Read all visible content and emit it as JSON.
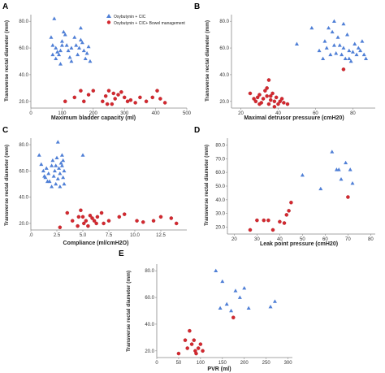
{
  "legend": {
    "items": [
      {
        "label": "Oxybutynin + CIC",
        "color": "#4f7fd6",
        "marker": "triangle"
      },
      {
        "label": "Oxybutynin + CIC+ Bowel management",
        "color": "#d4282f",
        "marker": "circle"
      }
    ]
  },
  "chart_data": [
    {
      "panel": "A",
      "type": "scatter",
      "xlabel": "Maximum bladder capacity (ml)",
      "ylabel": "Transverse rectal diameter (mm)",
      "xlim": [
        0,
        500
      ],
      "ylim": [
        15,
        85
      ],
      "xticks": [
        "0",
        "100",
        "200",
        "300",
        "400",
        "500"
      ],
      "yticks": [
        "20.0",
        "40.0",
        "60.0",
        "80.0"
      ],
      "series": [
        {
          "name": "Oxybutynin + CIC",
          "points": [
            [
              75,
              82
            ],
            [
              65,
              68
            ],
            [
              70,
              62
            ],
            [
              80,
              60
            ],
            [
              85,
              57
            ],
            [
              90,
              55
            ],
            [
              95,
              58
            ],
            [
              100,
              65
            ],
            [
              110,
              70
            ],
            [
              115,
              62
            ],
            [
              120,
              58
            ],
            [
              125,
              53
            ],
            [
              130,
              50
            ],
            [
              140,
              68
            ],
            [
              145,
              62
            ],
            [
              150,
              55
            ],
            [
              155,
              60
            ],
            [
              160,
              75
            ],
            [
              165,
              64
            ],
            [
              170,
              58
            ],
            [
              175,
              52
            ],
            [
              180,
              56
            ],
            [
              185,
              61
            ],
            [
              190,
              50
            ],
            [
              80,
              52
            ],
            [
              95,
              48
            ],
            [
              105,
              72
            ],
            [
              130,
              60
            ],
            [
              70,
              55
            ],
            [
              100,
              62
            ],
            [
              160,
              66
            ]
          ]
        },
        {
          "name": "Oxybutynin + CIC+ Bowel management",
          "points": [
            [
              110,
              20
            ],
            [
              140,
              23
            ],
            [
              160,
              28
            ],
            [
              170,
              20
            ],
            [
              185,
              25
            ],
            [
              200,
              28
            ],
            [
              230,
              20
            ],
            [
              240,
              24
            ],
            [
              250,
              28
            ],
            [
              260,
              18
            ],
            [
              270,
              22
            ],
            [
              280,
              25
            ],
            [
              290,
              27
            ],
            [
              300,
              23
            ],
            [
              310,
              20
            ],
            [
              320,
              21
            ],
            [
              335,
              19
            ],
            [
              350,
              23
            ],
            [
              370,
              20
            ],
            [
              390,
              23
            ],
            [
              405,
              28
            ],
            [
              415,
              22
            ],
            [
              430,
              19
            ],
            [
              245,
              18
            ],
            [
              265,
              26
            ]
          ]
        }
      ]
    },
    {
      "panel": "B",
      "type": "scatter",
      "xlabel": "Maximal detrusor pressuure (cmH20)",
      "ylabel": "Transverse rectal diameter (mm)",
      "xlim": [
        15,
        92
      ],
      "ylim": [
        15,
        85
      ],
      "xticks": [
        "20",
        "40",
        "60",
        "80"
      ],
      "yticks": [
        "20.0",
        "40.0",
        "60.0",
        "80.0"
      ],
      "series": [
        {
          "name": "Oxybutynin + CIC",
          "points": [
            [
              50,
              63
            ],
            [
              58,
              75
            ],
            [
              62,
              58
            ],
            [
              64,
              52
            ],
            [
              65,
              65
            ],
            [
              66,
              60
            ],
            [
              68,
              55
            ],
            [
              69,
              72
            ],
            [
              70,
              80
            ],
            [
              71,
              56
            ],
            [
              72,
              68
            ],
            [
              73,
              62
            ],
            [
              74,
              55
            ],
            [
              75,
              60
            ],
            [
              76,
              52
            ],
            [
              77,
              70
            ],
            [
              78,
              58
            ],
            [
              79,
              50
            ],
            [
              80,
              57
            ],
            [
              81,
              63
            ],
            [
              82,
              55
            ],
            [
              83,
              60
            ],
            [
              84,
              58
            ],
            [
              85,
              65
            ],
            [
              86,
              55
            ],
            [
              87,
              52
            ],
            [
              67,
              75
            ],
            [
              75,
              78
            ],
            [
              70,
              62
            ],
            [
              78,
              52
            ]
          ]
        },
        {
          "name": "Oxybutynin + CIC+ Bowel management",
          "points": [
            [
              25,
              26
            ],
            [
              27,
              22
            ],
            [
              28,
              20
            ],
            [
              29,
              23
            ],
            [
              30,
              25
            ],
            [
              31,
              19
            ],
            [
              32,
              22
            ],
            [
              33,
              28
            ],
            [
              34,
              24
            ],
            [
              35,
              18
            ],
            [
              36,
              21
            ],
            [
              37,
              26
            ],
            [
              38,
              20
            ],
            [
              39,
              23
            ],
            [
              40,
              18
            ],
            [
              42,
              22
            ],
            [
              43,
              19
            ],
            [
              35,
              36
            ],
            [
              34,
              30
            ],
            [
              30,
              18
            ],
            [
              36,
              24
            ],
            [
              38,
              16
            ],
            [
              41,
              20
            ],
            [
              75,
              44
            ],
            [
              45,
              18
            ]
          ]
        }
      ]
    },
    {
      "panel": "C",
      "type": "scatter",
      "xlabel": "Compliance (ml/cmH2O)",
      "ylabel": "Transverse rectal diameter (mm)",
      "xlim": [
        0,
        15
      ],
      "ylim": [
        15,
        85
      ],
      "xticks": [
        ".0",
        "2.5",
        "5.0",
        "7.5",
        "10.0",
        "12.5"
      ],
      "yticks": [
        "20.0",
        "40.0",
        "60.0",
        "80.0"
      ],
      "series": [
        {
          "name": "Oxybutynin + CIC",
          "points": [
            [
              0.8,
              72
            ],
            [
              1.0,
              65
            ],
            [
              1.2,
              60
            ],
            [
              1.4,
              55
            ],
            [
              1.5,
              62
            ],
            [
              1.7,
              58
            ],
            [
              1.8,
              52
            ],
            [
              2.0,
              64
            ],
            [
              2.1,
              68
            ],
            [
              2.2,
              56
            ],
            [
              2.3,
              60
            ],
            [
              2.4,
              50
            ],
            [
              2.5,
              70
            ],
            [
              2.6,
              82
            ],
            [
              2.7,
              62
            ],
            [
              2.8,
              58
            ],
            [
              2.9,
              66
            ],
            [
              3.0,
              72
            ],
            [
              3.1,
              55
            ],
            [
              3.2,
              60
            ],
            [
              1.6,
              52
            ],
            [
              2.0,
              48
            ],
            [
              2.6,
              54
            ],
            [
              3.0,
              64
            ],
            [
              3.1,
              68
            ],
            [
              5.0,
              72
            ],
            [
              1.3,
              56
            ],
            [
              2.8,
              48
            ],
            [
              2.4,
              64
            ],
            [
              3.2,
              50
            ]
          ]
        },
        {
          "name": "Oxybutynin + CIC+ Bowel management",
          "points": [
            [
              3.5,
              28
            ],
            [
              4.0,
              22
            ],
            [
              4.5,
              18
            ],
            [
              4.6,
              25
            ],
            [
              4.8,
              30
            ],
            [
              5.0,
              25
            ],
            [
              5.1,
              20
            ],
            [
              5.3,
              22
            ],
            [
              5.5,
              18
            ],
            [
              5.7,
              26
            ],
            [
              5.9,
              24
            ],
            [
              6.1,
              22
            ],
            [
              6.3,
              20
            ],
            [
              6.4,
              25
            ],
            [
              6.8,
              28
            ],
            [
              7.0,
              20
            ],
            [
              7.5,
              22
            ],
            [
              8.5,
              25
            ],
            [
              9.0,
              27
            ],
            [
              10.2,
              22
            ],
            [
              10.8,
              21
            ],
            [
              11.8,
              22
            ],
            [
              12.5,
              25
            ],
            [
              13.5,
              24
            ],
            [
              14.0,
              20
            ],
            [
              2.8,
              17
            ]
          ]
        }
      ]
    },
    {
      "panel": "D",
      "type": "scatter",
      "xlabel": "Leak point pressure (cmH20)",
      "ylabel": "Transverse rectal diameter (mm)",
      "xlim": [
        17,
        82
      ],
      "ylim": [
        15,
        85
      ],
      "xticks": [
        "20",
        "30",
        "40",
        "50",
        "60",
        "70",
        "80"
      ],
      "yticks": [
        "20.0",
        "30.0",
        "40.0",
        "50.0",
        "60.0",
        "70.0",
        "80.0"
      ],
      "series": [
        {
          "name": "Oxybutynin + CIC",
          "points": [
            [
              50,
              58
            ],
            [
              58,
              48
            ],
            [
              63,
              75
            ],
            [
              65,
              62
            ],
            [
              67,
              55
            ],
            [
              69,
              67
            ],
            [
              71,
              62
            ],
            [
              72,
              52
            ],
            [
              66,
              62
            ]
          ]
        },
        {
          "name": "Oxybutynin + CIC+ Bowel management",
          "points": [
            [
              27,
              18
            ],
            [
              30,
              25
            ],
            [
              33,
              25
            ],
            [
              35,
              25
            ],
            [
              37,
              18
            ],
            [
              40,
              24
            ],
            [
              42,
              23
            ],
            [
              43,
              29
            ],
            [
              44,
              32
            ],
            [
              45,
              38
            ],
            [
              70,
              42
            ]
          ]
        }
      ]
    },
    {
      "panel": "E",
      "type": "scatter",
      "xlabel": "PVR (ml)",
      "ylabel": "Transverse rectal diameter (mm)",
      "xlim": [
        0,
        310
      ],
      "ylim": [
        15,
        85
      ],
      "xticks": [
        "0",
        "50",
        "100",
        "150",
        "200",
        "250",
        "300"
      ],
      "yticks": [
        "20.0",
        "40.0",
        "60.0",
        "80.0"
      ],
      "series": [
        {
          "name": "Oxybutynin + CIC",
          "points": [
            [
              135,
              80
            ],
            [
              145,
              52
            ],
            [
              150,
              72
            ],
            [
              160,
              55
            ],
            [
              170,
              50
            ],
            [
              180,
              65
            ],
            [
              190,
              60
            ],
            [
              200,
              67
            ],
            [
              210,
              52
            ],
            [
              260,
              53
            ],
            [
              270,
              57
            ]
          ]
        },
        {
          "name": "Oxybutynin + CIC+ Bowel management",
          "points": [
            [
              50,
              18
            ],
            [
              65,
              28
            ],
            [
              70,
              22
            ],
            [
              75,
              35
            ],
            [
              80,
              25
            ],
            [
              85,
              28
            ],
            [
              88,
              20
            ],
            [
              90,
              18
            ],
            [
              95,
              22
            ],
            [
              100,
              25
            ],
            [
              105,
              20
            ],
            [
              175,
              45
            ]
          ]
        }
      ]
    }
  ]
}
